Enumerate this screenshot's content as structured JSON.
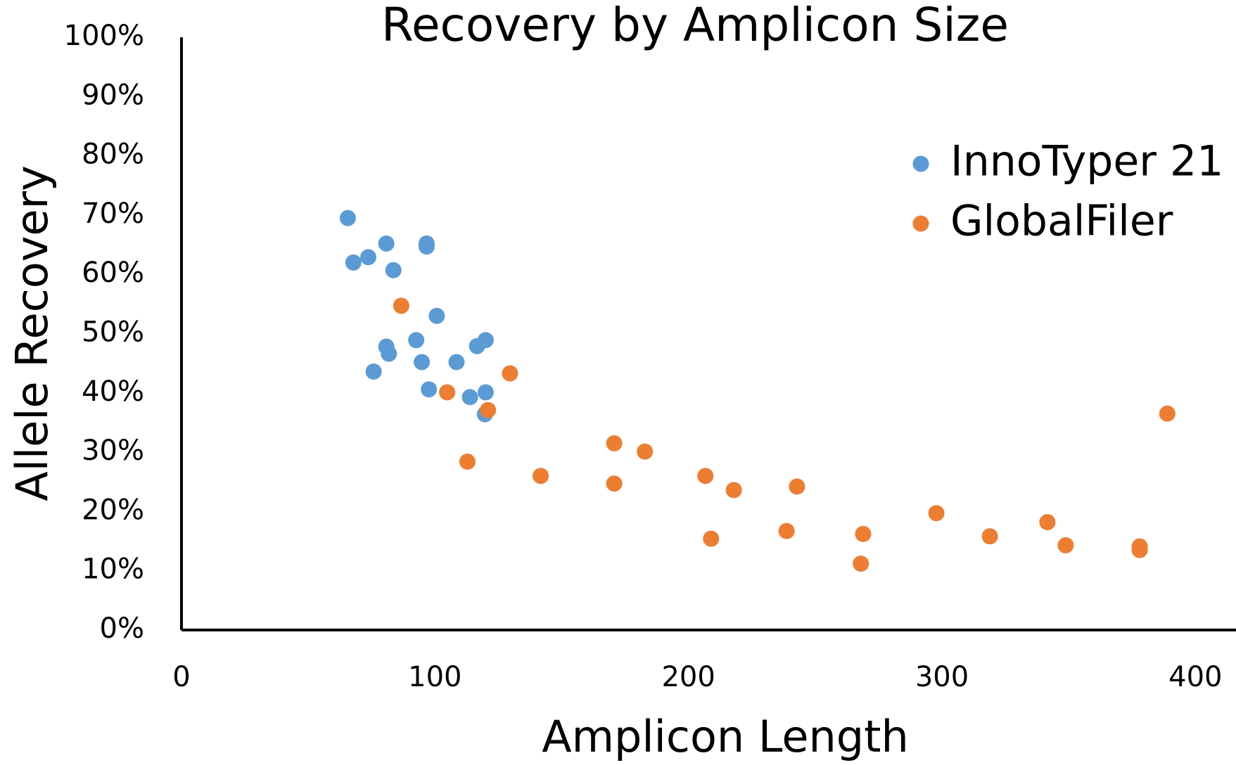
{
  "chart_data": {
    "type": "scatter",
    "title": "Recovery by Amplicon Size",
    "x_label": "Amplicon Length",
    "y_label": "Allele Recovery",
    "xlim": [
      0,
      416
    ],
    "xticks": [
      0,
      100,
      200,
      300,
      400
    ],
    "ylim": [
      0,
      100
    ],
    "yticks": [
      {
        "value": 0,
        "label": "0%"
      },
      {
        "value": 10,
        "label": "10%"
      },
      {
        "value": 20,
        "label": "20%"
      },
      {
        "value": 30,
        "label": "30%"
      },
      {
        "value": 40,
        "label": "40%"
      },
      {
        "value": 50,
        "label": "50%"
      },
      {
        "value": 60,
        "label": "60%"
      },
      {
        "value": 70,
        "label": "70%"
      },
      {
        "value": 80,
        "label": "80%"
      },
      {
        "value": 90,
        "label": "90%"
      },
      {
        "value": 100,
        "label": "100%"
      }
    ],
    "grid": false,
    "legend": "upper right",
    "series": [
      {
        "name": "InnoTyper 21",
        "color": "#5b9bd5",
        "x": [
          65.6,
          67.8,
          73.7,
          80.8,
          83.6,
          96.7,
          96.7,
          100.7,
          92.6,
          80.8,
          81.8,
          75.8,
          94.8,
          108.5,
          97.6,
          113.8,
          120,
          116.6,
          120,
          119.7
        ],
        "values": [
          69.5,
          62.0,
          62.9,
          65.2,
          60.7,
          65.2,
          64.7,
          53.0,
          48.9,
          47.8,
          46.6,
          43.6,
          45.2,
          45.2,
          40.6,
          39.3,
          40.1,
          47.9,
          48.9,
          36.4
        ]
      },
      {
        "name": "GlobalFiler",
        "color": "#ed7d31",
        "x": [
          86.7,
          104.8,
          129.6,
          120.9,
          112.8,
          141.7,
          170.7,
          170.7,
          182.8,
          206.7,
          217.9,
          208.9,
          242.8,
          238.7,
          268.9,
          268,
          297.8,
          318.9,
          341.6,
          348.8,
          378,
          378,
          388.9
        ],
        "values": [
          54.7,
          40.1,
          43.3,
          37.1,
          28.4,
          26.0,
          31.5,
          24.7,
          30.1,
          26.0,
          23.6,
          15.4,
          24.2,
          16.7,
          16.2,
          11.2,
          19.7,
          15.8,
          18.2,
          14.3,
          14.1,
          13.5,
          36.5
        ]
      }
    ]
  }
}
